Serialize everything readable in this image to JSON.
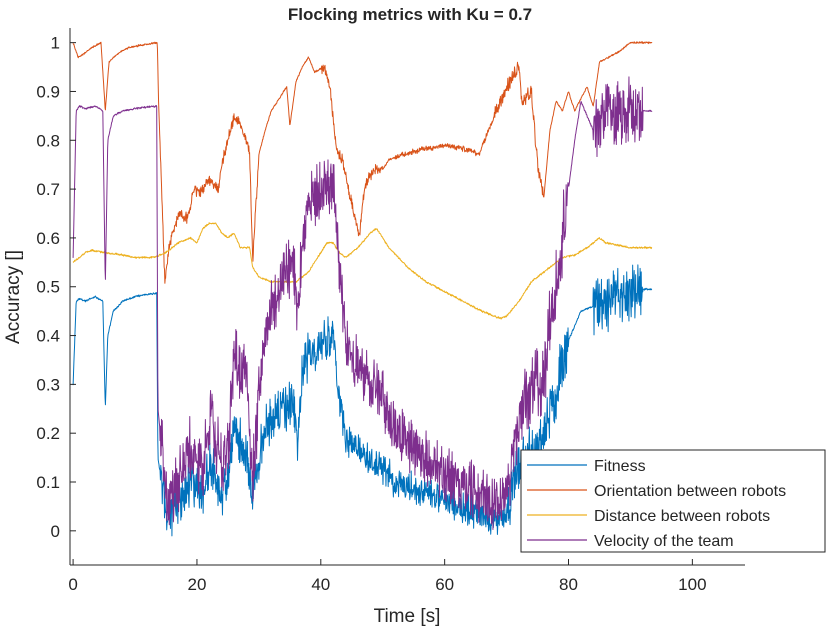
{
  "chart_data": {
    "type": "line",
    "title": "Flocking metrics with Ku = 0.7",
    "xlabel": "Time [s]",
    "ylabel": "Accuracy []",
    "xlim": [
      -0.5,
      108.5
    ],
    "ylim": [
      -0.07,
      1.03
    ],
    "xticks": [
      "0",
      "20",
      "40",
      "60",
      "80",
      "100"
    ],
    "yticks": [
      "0",
      "0.1",
      "0.2",
      "0.3",
      "0.4",
      "0.5",
      "0.6",
      "0.7",
      "0.8",
      "0.9",
      "1"
    ],
    "grid": false,
    "legend_position": "bottom-right",
    "series": [
      {
        "name": "Fitness",
        "color": "#0072BD",
        "noise": [
          [
            14,
            42,
            0.05
          ],
          [
            42,
            70,
            0.035
          ],
          [
            70,
            80,
            0.06
          ],
          [
            84,
            92,
            0.06
          ]
        ],
        "points": [
          [
            0,
            0.3
          ],
          [
            0.5,
            0.47
          ],
          [
            1,
            0.475
          ],
          [
            2,
            0.47
          ],
          [
            3.5,
            0.48
          ],
          [
            4.8,
            0.47
          ],
          [
            5.2,
            0.25
          ],
          [
            5.6,
            0.4
          ],
          [
            6.5,
            0.45
          ],
          [
            8,
            0.47
          ],
          [
            10,
            0.48
          ],
          [
            13.5,
            0.487
          ],
          [
            13.7,
            0.15
          ],
          [
            14.5,
            0.08
          ],
          [
            15.5,
            0.03
          ],
          [
            17,
            0.06
          ],
          [
            19,
            0.1
          ],
          [
            21,
            0.07
          ],
          [
            22,
            0.14
          ],
          [
            24,
            0.08
          ],
          [
            25,
            0.09
          ],
          [
            26,
            0.2
          ],
          [
            28,
            0.17
          ],
          [
            29,
            0.07
          ],
          [
            30,
            0.15
          ],
          [
            31,
            0.21
          ],
          [
            32,
            0.23
          ],
          [
            34,
            0.25
          ],
          [
            35.5,
            0.26
          ],
          [
            36.2,
            0.18
          ],
          [
            37,
            0.32
          ],
          [
            38,
            0.36
          ],
          [
            39,
            0.37
          ],
          [
            41,
            0.39
          ],
          [
            42,
            0.4
          ],
          [
            42.8,
            0.29
          ],
          [
            44,
            0.19
          ],
          [
            46,
            0.17
          ],
          [
            48,
            0.14
          ],
          [
            50,
            0.13
          ],
          [
            52,
            0.1
          ],
          [
            54,
            0.09
          ],
          [
            56,
            0.085
          ],
          [
            58,
            0.07
          ],
          [
            60,
            0.06
          ],
          [
            63,
            0.05
          ],
          [
            66,
            0.03
          ],
          [
            68,
            0.025
          ],
          [
            70,
            0.03
          ],
          [
            71,
            0.09
          ],
          [
            72,
            0.12
          ],
          [
            73,
            0.16
          ],
          [
            75,
            0.17
          ],
          [
            76,
            0.18
          ],
          [
            77,
            0.25
          ],
          [
            78,
            0.28
          ],
          [
            79,
            0.35
          ],
          [
            80,
            0.39
          ],
          [
            81,
            0.42
          ],
          [
            82,
            0.45
          ],
          [
            84,
            0.46
          ],
          [
            86,
            0.46
          ],
          [
            88,
            0.48
          ],
          [
            90,
            0.49
          ],
          [
            92,
            0.495
          ],
          [
            93.5,
            0.495
          ]
        ]
      },
      {
        "name": "Orientation between robots",
        "color": "#D95319",
        "noise": [
          [
            14,
            30,
            0.012
          ],
          [
            40,
            50,
            0.012
          ],
          [
            52,
            68,
            0.006
          ],
          [
            68,
            76,
            0.015
          ]
        ],
        "points": [
          [
            0,
            1.0
          ],
          [
            0.8,
            0.97
          ],
          [
            1.5,
            0.975
          ],
          [
            3,
            0.99
          ],
          [
            4.5,
            1.0
          ],
          [
            5.2,
            0.86
          ],
          [
            5.8,
            0.96
          ],
          [
            6.5,
            0.97
          ],
          [
            7.5,
            0.98
          ],
          [
            9,
            0.99
          ],
          [
            11,
            0.995
          ],
          [
            13.6,
            1.0
          ],
          [
            13.8,
            0.88
          ],
          [
            14.8,
            0.51
          ],
          [
            15.5,
            0.58
          ],
          [
            17,
            0.65
          ],
          [
            18.5,
            0.64
          ],
          [
            19.5,
            0.7
          ],
          [
            20.5,
            0.69
          ],
          [
            22,
            0.72
          ],
          [
            23.5,
            0.7
          ],
          [
            24,
            0.75
          ],
          [
            25,
            0.8
          ],
          [
            26,
            0.85
          ],
          [
            27,
            0.83
          ],
          [
            28.5,
            0.78
          ],
          [
            29,
            0.55
          ],
          [
            30,
            0.77
          ],
          [
            31,
            0.82
          ],
          [
            32,
            0.86
          ],
          [
            33,
            0.88
          ],
          [
            34.5,
            0.91
          ],
          [
            35,
            0.83
          ],
          [
            36,
            0.92
          ],
          [
            37,
            0.95
          ],
          [
            38,
            0.97
          ],
          [
            39,
            0.94
          ],
          [
            40.5,
            0.95
          ],
          [
            41.5,
            0.91
          ],
          [
            42.5,
            0.78
          ],
          [
            43.5,
            0.76
          ],
          [
            44.5,
            0.7
          ],
          [
            45.5,
            0.64
          ],
          [
            46.2,
            0.6
          ],
          [
            47,
            0.7
          ],
          [
            48,
            0.73
          ],
          [
            49,
            0.74
          ],
          [
            50,
            0.74
          ],
          [
            51,
            0.76
          ],
          [
            53,
            0.77
          ],
          [
            56,
            0.78
          ],
          [
            60,
            0.79
          ],
          [
            64,
            0.78
          ],
          [
            65.5,
            0.77
          ],
          [
            68,
            0.85
          ],
          [
            70,
            0.91
          ],
          [
            72,
            0.95
          ],
          [
            72.5,
            0.88
          ],
          [
            74,
            0.9
          ],
          [
            75,
            0.75
          ],
          [
            76,
            0.68
          ],
          [
            77,
            0.82
          ],
          [
            78,
            0.88
          ],
          [
            79,
            0.86
          ],
          [
            80,
            0.9
          ],
          [
            81,
            0.86
          ],
          [
            83,
            0.91
          ],
          [
            84,
            0.87
          ],
          [
            85,
            0.96
          ],
          [
            88,
            0.98
          ],
          [
            90,
            1.0
          ],
          [
            93.5,
            1.0
          ]
        ]
      },
      {
        "name": "Distance between robots",
        "color": "#EDB120",
        "noise": [],
        "points": [
          [
            0,
            0.55
          ],
          [
            1,
            0.56
          ],
          [
            2,
            0.57
          ],
          [
            3,
            0.575
          ],
          [
            5,
            0.57
          ],
          [
            8,
            0.565
          ],
          [
            10,
            0.56
          ],
          [
            13,
            0.56
          ],
          [
            15,
            0.57
          ],
          [
            17,
            0.59
          ],
          [
            19,
            0.6
          ],
          [
            20,
            0.59
          ],
          [
            21,
            0.62
          ],
          [
            22,
            0.63
          ],
          [
            23,
            0.63
          ],
          [
            24,
            0.61
          ],
          [
            25,
            0.6
          ],
          [
            26,
            0.61
          ],
          [
            27,
            0.58
          ],
          [
            28.5,
            0.58
          ],
          [
            29,
            0.54
          ],
          [
            30,
            0.52
          ],
          [
            32,
            0.51
          ],
          [
            34,
            0.51
          ],
          [
            36,
            0.51
          ],
          [
            38,
            0.53
          ],
          [
            40,
            0.57
          ],
          [
            41,
            0.59
          ],
          [
            42,
            0.59
          ],
          [
            43,
            0.57
          ],
          [
            44,
            0.56
          ],
          [
            45,
            0.57
          ],
          [
            46,
            0.58
          ],
          [
            48,
            0.61
          ],
          [
            49,
            0.62
          ],
          [
            50,
            0.6
          ],
          [
            51,
            0.58
          ],
          [
            54,
            0.54
          ],
          [
            57,
            0.51
          ],
          [
            60,
            0.49
          ],
          [
            63,
            0.47
          ],
          [
            66,
            0.45
          ],
          [
            69,
            0.435
          ],
          [
            70,
            0.44
          ],
          [
            72,
            0.47
          ],
          [
            74,
            0.51
          ],
          [
            77,
            0.54
          ],
          [
            79,
            0.56
          ],
          [
            81,
            0.565
          ],
          [
            83,
            0.58
          ],
          [
            84,
            0.59
          ],
          [
            85,
            0.6
          ],
          [
            86,
            0.59
          ],
          [
            88,
            0.585
          ],
          [
            90,
            0.58
          ],
          [
            93.5,
            0.58
          ]
        ]
      },
      {
        "name": "Velocity of the team",
        "color": "#7E2F8E",
        "noise": [
          [
            14,
            42,
            0.07
          ],
          [
            42,
            70,
            0.06
          ],
          [
            70,
            80,
            0.08
          ],
          [
            84,
            92,
            0.07
          ]
        ],
        "points": [
          [
            0,
            0.56
          ],
          [
            0.5,
            0.86
          ],
          [
            1,
            0.87
          ],
          [
            2,
            0.865
          ],
          [
            3.5,
            0.87
          ],
          [
            4.8,
            0.86
          ],
          [
            5.2,
            0.5
          ],
          [
            5.6,
            0.8
          ],
          [
            6.5,
            0.85
          ],
          [
            8,
            0.86
          ],
          [
            10,
            0.865
          ],
          [
            13.5,
            0.87
          ],
          [
            13.7,
            0.25
          ],
          [
            14.5,
            0.15
          ],
          [
            15.5,
            0.05
          ],
          [
            17,
            0.1
          ],
          [
            19,
            0.18
          ],
          [
            21,
            0.12
          ],
          [
            22,
            0.24
          ],
          [
            24,
            0.14
          ],
          [
            25,
            0.16
          ],
          [
            26,
            0.36
          ],
          [
            28,
            0.31
          ],
          [
            29,
            0.1
          ],
          [
            30,
            0.28
          ],
          [
            31,
            0.4
          ],
          [
            32,
            0.45
          ],
          [
            34,
            0.52
          ],
          [
            35.5,
            0.56
          ],
          [
            36.2,
            0.43
          ],
          [
            37,
            0.58
          ],
          [
            38,
            0.66
          ],
          [
            39,
            0.68
          ],
          [
            41,
            0.71
          ],
          [
            42,
            0.72
          ],
          [
            42.8,
            0.56
          ],
          [
            44,
            0.38
          ],
          [
            46,
            0.34
          ],
          [
            48,
            0.3
          ],
          [
            50,
            0.27
          ],
          [
            52,
            0.21
          ],
          [
            54,
            0.18
          ],
          [
            56,
            0.16
          ],
          [
            58,
            0.13
          ],
          [
            60,
            0.12
          ],
          [
            63,
            0.1
          ],
          [
            66,
            0.07
          ],
          [
            68,
            0.055
          ],
          [
            70,
            0.06
          ],
          [
            71,
            0.18
          ],
          [
            72,
            0.22
          ],
          [
            73,
            0.26
          ],
          [
            75,
            0.3
          ],
          [
            76,
            0.32
          ],
          [
            77,
            0.42
          ],
          [
            78,
            0.5
          ],
          [
            79,
            0.6
          ],
          [
            80,
            0.7
          ],
          [
            81,
            0.8
          ],
          [
            82,
            0.88
          ],
          [
            84,
            0.82
          ],
          [
            86,
            0.86
          ],
          [
            88,
            0.86
          ],
          [
            90,
            0.86
          ],
          [
            92,
            0.86
          ],
          [
            93.5,
            0.86
          ]
        ]
      }
    ]
  }
}
